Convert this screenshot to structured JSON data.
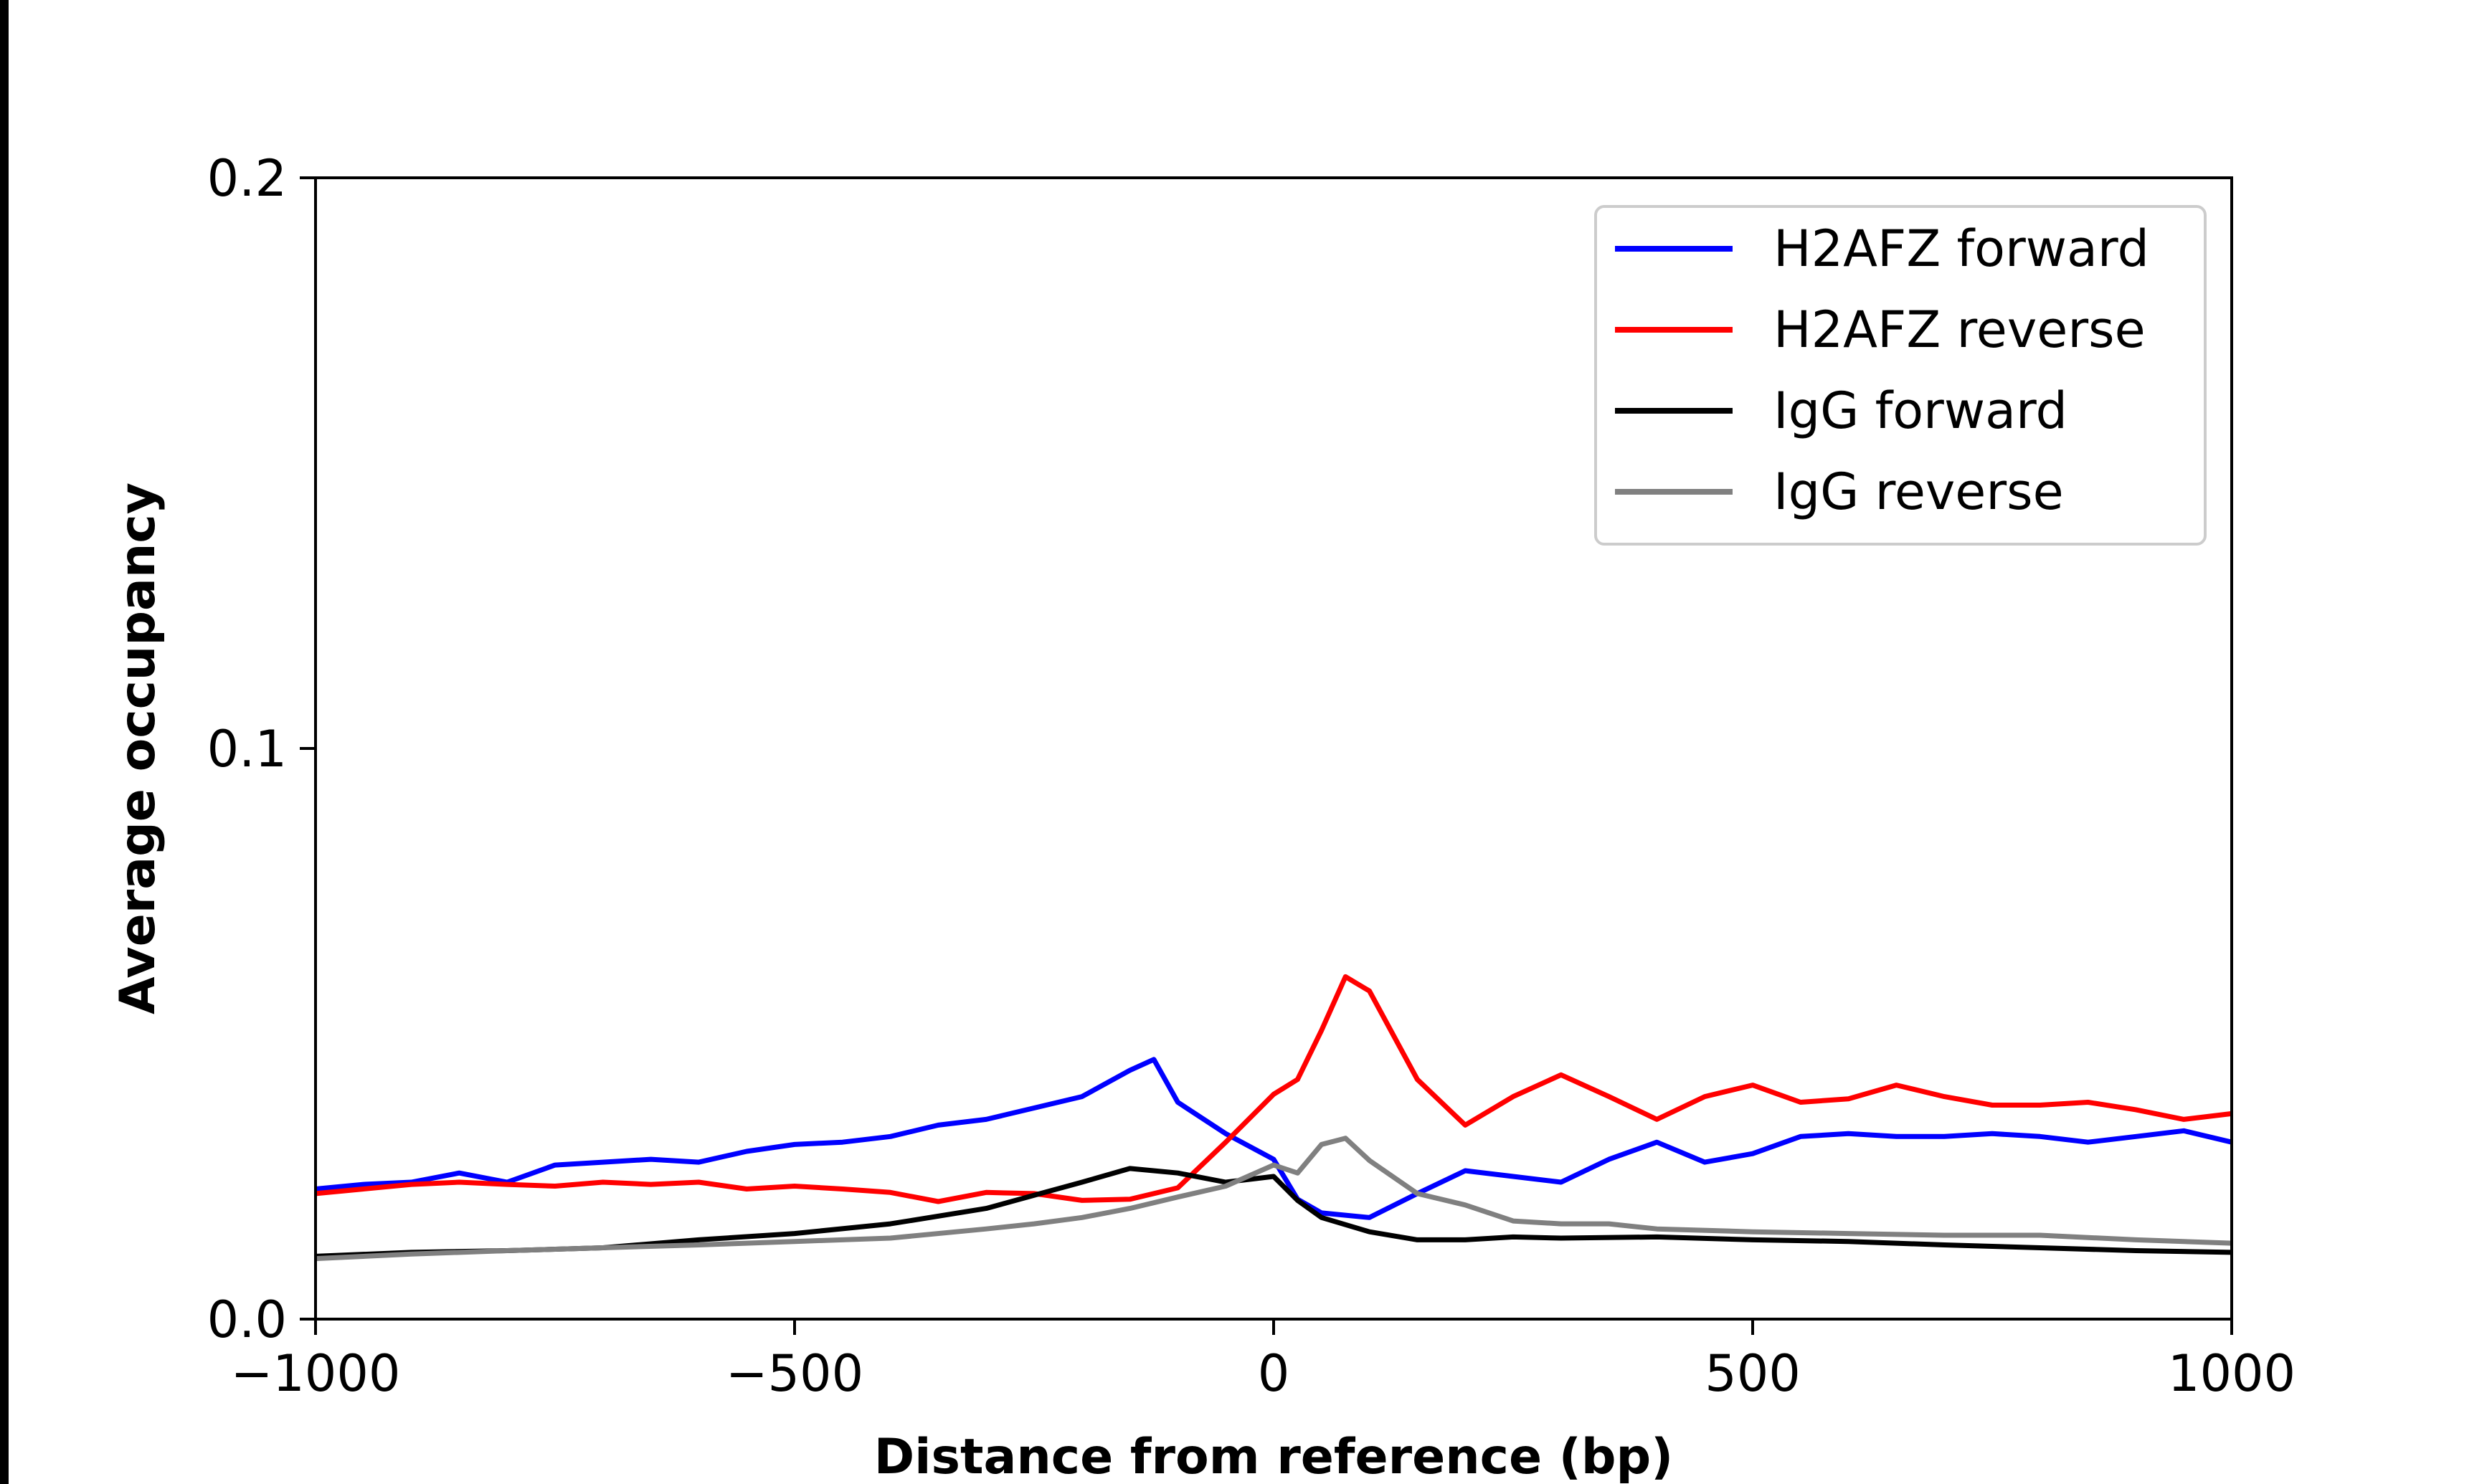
{
  "chart_data": {
    "type": "line",
    "title": "",
    "xlabel": "Distance from reference (bp)",
    "ylabel": "Average occupancy",
    "xlim": [
      -1000,
      1000
    ],
    "ylim": [
      0,
      0.2
    ],
    "xticks": [
      -1000,
      -500,
      0,
      500,
      1000
    ],
    "xtick_labels": [
      "−1000",
      "−500",
      "0",
      "500",
      "1000"
    ],
    "yticks": [
      0,
      0.1,
      0.2
    ],
    "ytick_labels": [
      "0.0",
      "0.1",
      "0.2"
    ],
    "grid": false,
    "legend_position": "top-right",
    "series": [
      {
        "name": "H2AFZ forward",
        "color": "#0000ff",
        "x": [
          -1000,
          -950,
          -900,
          -850,
          -800,
          -750,
          -700,
          -650,
          -600,
          -550,
          -500,
          -450,
          -400,
          -350,
          -300,
          -250,
          -200,
          -150,
          -125,
          -100,
          -50,
          0,
          25,
          50,
          100,
          150,
          200,
          250,
          300,
          350,
          400,
          450,
          500,
          550,
          600,
          650,
          700,
          750,
          800,
          850,
          900,
          950,
          1000
        ],
        "y": [
          0.0228,
          0.0236,
          0.024,
          0.0256,
          0.024,
          0.027,
          0.0275,
          0.028,
          0.0275,
          0.0294,
          0.0306,
          0.031,
          0.032,
          0.034,
          0.035,
          0.037,
          0.039,
          0.0436,
          0.0455,
          0.038,
          0.0325,
          0.028,
          0.021,
          0.0186,
          0.0178,
          0.022,
          0.026,
          0.025,
          0.024,
          0.028,
          0.031,
          0.0275,
          0.029,
          0.032,
          0.0325,
          0.032,
          0.032,
          0.0325,
          0.032,
          0.031,
          0.032,
          0.033,
          0.031
        ]
      },
      {
        "name": "H2AFZ reverse",
        "color": "#ff0000",
        "x": [
          -1000,
          -950,
          -900,
          -850,
          -800,
          -750,
          -700,
          -650,
          -600,
          -550,
          -500,
          -450,
          -400,
          -350,
          -300,
          -250,
          -200,
          -150,
          -100,
          -50,
          0,
          25,
          50,
          75,
          100,
          150,
          200,
          250,
          300,
          350,
          400,
          450,
          500,
          550,
          600,
          650,
          700,
          750,
          800,
          850,
          900,
          950,
          1000
        ],
        "y": [
          0.022,
          0.0228,
          0.0236,
          0.024,
          0.0236,
          0.0233,
          0.024,
          0.0236,
          0.024,
          0.0228,
          0.0233,
          0.0228,
          0.0222,
          0.0206,
          0.0222,
          0.022,
          0.0208,
          0.021,
          0.023,
          0.031,
          0.0394,
          0.042,
          0.0506,
          0.06,
          0.0575,
          0.042,
          0.034,
          0.039,
          0.0428,
          0.039,
          0.035,
          0.039,
          0.041,
          0.038,
          0.0386,
          0.041,
          0.039,
          0.0375,
          0.0375,
          0.038,
          0.0367,
          0.035,
          0.036
        ]
      },
      {
        "name": "IgG forward",
        "color": "#000000",
        "x": [
          -1000,
          -900,
          -800,
          -700,
          -600,
          -500,
          -400,
          -300,
          -250,
          -200,
          -150,
          -100,
          -50,
          0,
          25,
          50,
          100,
          150,
          200,
          250,
          300,
          400,
          500,
          600,
          700,
          800,
          900,
          1000
        ],
        "y": [
          0.011,
          0.0117,
          0.012,
          0.0125,
          0.0139,
          0.015,
          0.0167,
          0.0194,
          0.0217,
          0.024,
          0.0264,
          0.0256,
          0.024,
          0.025,
          0.0208,
          0.0178,
          0.0153,
          0.0139,
          0.0139,
          0.0144,
          0.0142,
          0.0144,
          0.0139,
          0.0136,
          0.013,
          0.0125,
          0.012,
          0.0117
        ]
      },
      {
        "name": "IgG reverse",
        "color": "#808080",
        "x": [
          -1000,
          -900,
          -800,
          -700,
          -600,
          -500,
          -400,
          -300,
          -250,
          -200,
          -150,
          -100,
          -50,
          0,
          25,
          50,
          75,
          100,
          150,
          200,
          250,
          300,
          350,
          400,
          500,
          600,
          700,
          800,
          900,
          1000
        ],
        "y": [
          0.0106,
          0.0114,
          0.012,
          0.0125,
          0.013,
          0.0136,
          0.0142,
          0.0158,
          0.0167,
          0.0178,
          0.0194,
          0.0214,
          0.0233,
          0.027,
          0.0256,
          0.0306,
          0.0317,
          0.0278,
          0.022,
          0.02,
          0.0172,
          0.0167,
          0.0167,
          0.0158,
          0.0153,
          0.015,
          0.0147,
          0.0147,
          0.0139,
          0.0133
        ]
      }
    ]
  }
}
